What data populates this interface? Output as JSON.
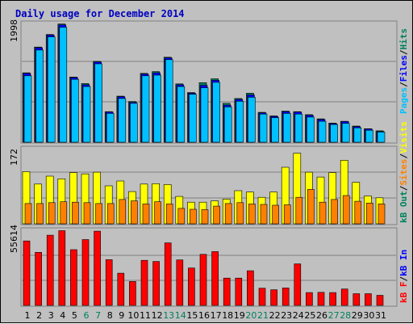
{
  "title": "Daily usage for December 2014",
  "colors": {
    "hits": "#00805c",
    "files": "#0000ff",
    "pages": "#00c0ff",
    "visits": "#ffff00",
    "sites": "#ff8000",
    "kb_f": "#ff0000",
    "kb_in": "#0000ff",
    "kb_out": "#00805c",
    "weekend_day": "#00805c",
    "weekday": "#000000"
  },
  "panel_labels": {
    "top": {
      "pages": "Pages",
      "files": "Files",
      "hits": "Hits"
    },
    "middle": {
      "visits": "Visits",
      "sites": "Sites",
      "kb_out": "kB Out"
    },
    "bottom": {
      "kb_in": "kB In",
      "kb_f": "kB F"
    }
  },
  "chart_data": [
    {
      "type": "bar",
      "panel": "top",
      "ymax_label": "1998",
      "ylim": [
        0,
        1998
      ],
      "categories": [
        "1",
        "2",
        "3",
        "4",
        "5",
        "6",
        "7",
        "8",
        "9",
        "10",
        "11",
        "12",
        "13",
        "14",
        "15",
        "16",
        "17",
        "18",
        "19",
        "20",
        "21",
        "22",
        "23",
        "24",
        "25",
        "26",
        "27",
        "28",
        "29",
        "30",
        "31"
      ],
      "weekend": [
        6,
        7,
        13,
        14,
        20,
        21,
        27,
        28
      ],
      "series": [
        {
          "name": "Hits",
          "values": [
            1160,
            1590,
            1800,
            1975,
            1090,
            980,
            1350,
            510,
            770,
            680,
            1150,
            1180,
            1420,
            975,
            830,
            995,
            1060,
            650,
            730,
            820,
            500,
            440,
            520,
            510,
            460,
            390,
            320,
            350,
            270,
            225,
            190
          ]
        },
        {
          "name": "Files",
          "values": [
            1150,
            1580,
            1790,
            1960,
            1080,
            960,
            1340,
            505,
            760,
            665,
            1140,
            1160,
            1410,
            960,
            820,
            950,
            1035,
            620,
            715,
            790,
            490,
            430,
            510,
            505,
            450,
            380,
            310,
            345,
            260,
            220,
            180
          ]
        },
        {
          "name": "Pages",
          "values": [
            1110,
            1540,
            1760,
            1920,
            1050,
            930,
            1310,
            480,
            730,
            650,
            1110,
            1120,
            1380,
            930,
            800,
            910,
            1000,
            590,
            685,
            750,
            470,
            410,
            480,
            470,
            420,
            350,
            295,
            315,
            240,
            200,
            170
          ]
        }
      ]
    },
    {
      "type": "bar",
      "panel": "middle",
      "ymax_label": "172",
      "ylim": [
        0,
        172
      ],
      "series": [
        {
          "name": "Visits",
          "values": [
            118,
            90,
            108,
            102,
            116,
            113,
            117,
            86,
            97,
            73,
            90,
            91,
            89,
            62,
            49,
            49,
            52,
            56,
            75,
            72,
            60,
            72,
            128,
            160,
            117,
            106,
            116,
            144,
            94,
            63,
            59
          ]
        },
        {
          "name": "Sites",
          "values": [
            46,
            46,
            48,
            50,
            49,
            48,
            46,
            46,
            55,
            52,
            45,
            50,
            45,
            35,
            33,
            32,
            40,
            46,
            48,
            45,
            44,
            42,
            43,
            60,
            78,
            49,
            55,
            64,
            51,
            47,
            45
          ]
        }
      ]
    },
    {
      "type": "bar",
      "panel": "bottom",
      "ymax_label": "55614",
      "ylim": [
        0,
        55614
      ],
      "series": [
        {
          "name": "kB F",
          "values": [
            47200,
            38900,
            51400,
            54700,
            40800,
            48200,
            54400,
            33500,
            23600,
            17500,
            33000,
            32200,
            45800,
            33300,
            27400,
            37400,
            39400,
            20000,
            20000,
            25400,
            12600,
            11500,
            12800,
            30400,
            9400,
            9600,
            9400,
            12000,
            8600,
            8600,
            7400
          ]
        }
      ]
    }
  ],
  "day_labels": [
    "1",
    "2",
    "3",
    "4",
    "5",
    "6",
    "7",
    "8",
    "9",
    "10",
    "11",
    "12",
    "13",
    "14",
    "15",
    "16",
    "17",
    "18",
    "19",
    "20",
    "21",
    "22",
    "23",
    "24",
    "25",
    "26",
    "27",
    "28",
    "29",
    "30",
    "31"
  ]
}
